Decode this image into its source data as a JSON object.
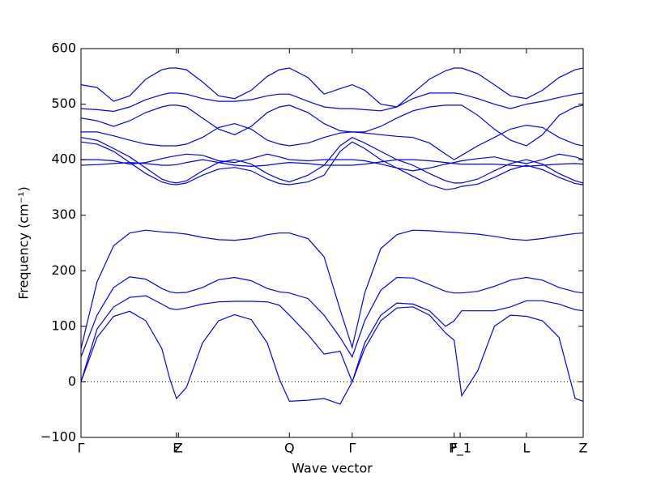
{
  "chart_data": {
    "type": "line",
    "xlabel": "Wave vector",
    "ylabel": "Frequency (cm⁻¹)",
    "xlim": [
      0,
      1
    ],
    "ylim": [
      -100,
      600
    ],
    "yticks": [
      {
        "value": -100,
        "label": "−100"
      },
      0,
      100,
      200,
      300,
      400,
      500,
      600
    ],
    "xticks": [
      {
        "value": 0,
        "label": "Γ"
      },
      {
        "value": 0.19,
        "label": "F"
      },
      {
        "value": 0.194,
        "label": "Z"
      },
      {
        "value": 0.415,
        "label": "Q"
      },
      {
        "value": 0.54,
        "label": "Γ"
      },
      {
        "value": 0.743,
        "label": "F"
      },
      {
        "value": 0.755,
        "label": "P_1"
      },
      {
        "value": 0.887,
        "label": "L"
      },
      {
        "value": 1,
        "label": "Z"
      }
    ],
    "hline": 0,
    "x": [
      0,
      0.032,
      0.065,
      0.097,
      0.129,
      0.161,
      0.177,
      0.19,
      0.21,
      0.242,
      0.274,
      0.306,
      0.339,
      0.371,
      0.395,
      0.415,
      0.452,
      0.484,
      0.516,
      0.54,
      0.565,
      0.597,
      0.629,
      0.661,
      0.694,
      0.726,
      0.743,
      0.758,
      0.79,
      0.823,
      0.855,
      0.887,
      0.919,
      0.952,
      0.984,
      1.0
    ],
    "series": [
      {
        "color": "#0000ff",
        "values": [
          0,
          80,
          118,
          127,
          110,
          60,
          5,
          -30,
          -10,
          70,
          110,
          121,
          112,
          70,
          5,
          -35,
          -33,
          -30,
          -40,
          0,
          60,
          110,
          133,
          135,
          120,
          88,
          75,
          -25,
          20,
          100,
          120,
          118,
          110,
          80,
          -30,
          -35
        ]
      },
      {
        "color": "#0000ff",
        "values": [
          0,
          95,
          135,
          152,
          155,
          140,
          132,
          130,
          133,
          140,
          144,
          145,
          145,
          144,
          138,
          120,
          85,
          50,
          55,
          0,
          70,
          120,
          142,
          140,
          128,
          100,
          110,
          128,
          128,
          128,
          135,
          146,
          146,
          140,
          130,
          128
        ]
      },
      {
        "color": "#0000ff",
        "values": [
          45,
          120,
          170,
          189,
          185,
          168,
          162,
          160,
          161,
          170,
          184,
          188,
          182,
          168,
          162,
          160,
          150,
          120,
          80,
          45,
          110,
          165,
          188,
          187,
          175,
          163,
          160,
          160,
          163,
          172,
          183,
          188,
          183,
          170,
          162,
          160
        ]
      },
      {
        "color": "#0000ff",
        "values": [
          60,
          180,
          245,
          268,
          273,
          270,
          269,
          268,
          266,
          260,
          256,
          255,
          258,
          265,
          268,
          268,
          258,
          225,
          130,
          62,
          160,
          240,
          265,
          273,
          272,
          270,
          269,
          268,
          266,
          262,
          257,
          255,
          258,
          263,
          267,
          268
        ]
      },
      {
        "color": "#0000ff",
        "values": [
          535,
          530,
          505,
          515,
          545,
          562,
          565,
          565,
          562,
          540,
          515,
          510,
          525,
          550,
          562,
          565,
          548,
          518,
          528,
          535,
          525,
          500,
          495,
          520,
          545,
          560,
          565,
          565,
          555,
          535,
          515,
          510,
          525,
          548,
          562,
          565
        ]
      },
      {
        "color": "#0000ff",
        "values": [
          492,
          490,
          487,
          495,
          508,
          517,
          520,
          520,
          518,
          510,
          505,
          505,
          508,
          515,
          518,
          518,
          505,
          495,
          492,
          492,
          490,
          488,
          495,
          510,
          520,
          520,
          520,
          518,
          510,
          500,
          492,
          500,
          505,
          512,
          518,
          520
        ]
      },
      {
        "color": "#0000ff",
        "values": [
          475,
          470,
          460,
          470,
          485,
          495,
          498,
          498,
          495,
          475,
          455,
          445,
          460,
          485,
          495,
          498,
          485,
          465,
          452,
          450,
          450,
          460,
          475,
          488,
          495,
          498,
          498,
          498,
          480,
          455,
          435,
          425,
          445,
          480,
          495,
          498
        ]
      },
      {
        "color": "#0000ff",
        "values": [
          450,
          450,
          443,
          435,
          428,
          425,
          425,
          425,
          428,
          440,
          458,
          465,
          455,
          435,
          428,
          425,
          430,
          440,
          448,
          450,
          448,
          445,
          442,
          440,
          430,
          410,
          400,
          408,
          425,
          440,
          455,
          462,
          458,
          440,
          428,
          425
        ]
      },
      {
        "color": "#0000ff",
        "values": [
          440,
          435,
          420,
          405,
          385,
          365,
          360,
          358,
          362,
          380,
          395,
          400,
          392,
          375,
          365,
          360,
          372,
          390,
          425,
          440,
          430,
          415,
          400,
          390,
          375,
          362,
          358,
          358,
          365,
          380,
          393,
          400,
          392,
          375,
          362,
          358
        ]
      },
      {
        "color": "#0000ff",
        "values": [
          432,
          428,
          415,
          395,
          375,
          360,
          356,
          355,
          358,
          372,
          383,
          386,
          380,
          365,
          357,
          355,
          360,
          372,
          415,
          432,
          420,
          400,
          385,
          370,
          355,
          346,
          348,
          352,
          356,
          368,
          382,
          390,
          382,
          368,
          357,
          355
        ]
      },
      {
        "color": "#0000ff",
        "values": [
          400,
          400,
          398,
          392,
          395,
          402,
          405,
          407,
          410,
          408,
          398,
          395,
          402,
          410,
          405,
          400,
          398,
          400,
          400,
          400,
          398,
          392,
          385,
          380,
          385,
          392,
          395,
          398,
          402,
          405,
          398,
          393,
          400,
          410,
          405,
          400
        ]
      },
      {
        "color": "#0000ff",
        "values": [
          390,
          391,
          393,
          395,
          393,
          390,
          390,
          391,
          395,
          400,
          395,
          390,
          388,
          390,
          393,
          395,
          393,
          390,
          390,
          390,
          392,
          396,
          400,
          400,
          398,
          395,
          393,
          392,
          392,
          392,
          390,
          388,
          390,
          392,
          393,
          392
        ]
      }
    ]
  }
}
